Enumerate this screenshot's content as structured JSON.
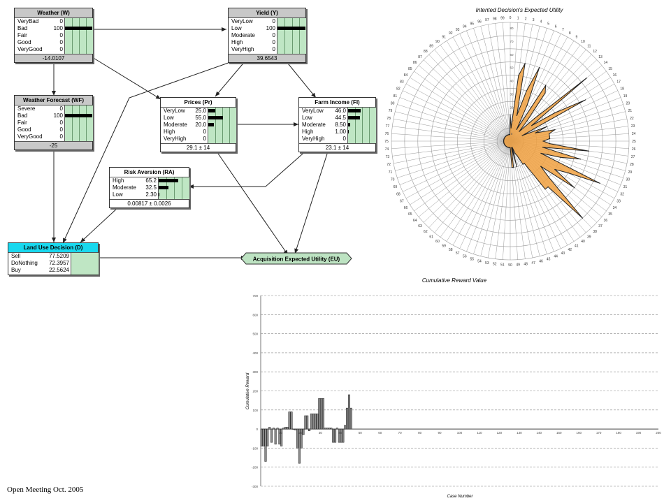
{
  "network": {
    "nodes": {
      "weather": {
        "title": "Weather (W)",
        "states": [
          {
            "label": "VeryBad",
            "value": "0"
          },
          {
            "label": "Bad",
            "value": "100"
          },
          {
            "label": "Fair",
            "value": "0"
          },
          {
            "label": "Good",
            "value": "0"
          },
          {
            "label": "VeryGood",
            "value": "0"
          }
        ],
        "levels": [
          0,
          1,
          0,
          0,
          0
        ],
        "footer": "-14.0107"
      },
      "yield": {
        "title": "Yield (Y)",
        "states": [
          {
            "label": "VeryLow",
            "value": "0"
          },
          {
            "label": "Low",
            "value": "100"
          },
          {
            "label": "Moderate",
            "value": "0"
          },
          {
            "label": "High",
            "value": "0"
          },
          {
            "label": "VeryHigh",
            "value": "0"
          }
        ],
        "levels": [
          0,
          1,
          0,
          0,
          0
        ],
        "footer": "39.6543"
      },
      "forecast": {
        "title": "Weather Forecast (WF)",
        "states": [
          {
            "label": "Severe",
            "value": "0"
          },
          {
            "label": "Bad",
            "value": "100"
          },
          {
            "label": "Fair",
            "value": "0"
          },
          {
            "label": "Good",
            "value": "0"
          },
          {
            "label": "VeryGood",
            "value": "0"
          }
        ],
        "levels": [
          0,
          1,
          0,
          0,
          0
        ],
        "footer": "-25"
      },
      "prices": {
        "title": "Prices (Pr)",
        "states": [
          {
            "label": "VeryLow",
            "value": "25.0"
          },
          {
            "label": "Low",
            "value": "55.0"
          },
          {
            "label": "Moderate",
            "value": "20.0"
          },
          {
            "label": "High",
            "value": "0"
          },
          {
            "label": "VeryHigh",
            "value": "0"
          }
        ],
        "levels": [
          0.25,
          0.55,
          0.2,
          0,
          0
        ],
        "footer": "29.1 ± 14"
      },
      "farm_income": {
        "title": "Farm Income (FI)",
        "states": [
          {
            "label": "VeryLow",
            "value": "46.0"
          },
          {
            "label": "Low",
            "value": "44.5"
          },
          {
            "label": "Moderate",
            "value": "8.50"
          },
          {
            "label": "High",
            "value": "1.00"
          },
          {
            "label": "VeryHigh",
            "value": "0"
          }
        ],
        "levels": [
          0.46,
          0.445,
          0.085,
          0.01,
          0
        ],
        "footer": "23.1 ± 14"
      },
      "risk": {
        "title": "Risk Aversion (RA)",
        "states": [
          {
            "label": "High",
            "value": "65.2"
          },
          {
            "label": "Moderate",
            "value": "32.5"
          },
          {
            "label": "Low",
            "value": "2.30"
          }
        ],
        "levels": [
          0.652,
          0.325,
          0.023
        ],
        "footer": "0.00817 ± 0.0026"
      },
      "decision": {
        "title": "Land Use Decision (D)",
        "states": [
          {
            "label": "Sell",
            "value": "77.5209"
          },
          {
            "label": "DoNothing",
            "value": "72.3957"
          },
          {
            "label": "Buy",
            "value": "22.5624"
          }
        ]
      },
      "utility": {
        "title": "Acquisition Expected Utility (EU)"
      }
    }
  },
  "chart_data": [
    {
      "type": "radar",
      "title": "Intented Decision's Expected Utility",
      "categories": [
        "0",
        "1",
        "2",
        "3",
        "4",
        "5",
        "6",
        "7",
        "8",
        "9",
        "10",
        "11",
        "12",
        "13",
        "14",
        "15",
        "16",
        "17",
        "18",
        "19",
        "20",
        "21",
        "22",
        "23",
        "24",
        "25",
        "26",
        "27",
        "28",
        "29",
        "30",
        "31",
        "32",
        "33",
        "34",
        "35",
        "36",
        "37",
        "38",
        "39",
        "40",
        "41",
        "42",
        "43",
        "44",
        "45",
        "46",
        "47",
        "48",
        "49",
        "50",
        "51",
        "52",
        "53",
        "54",
        "55",
        "56",
        "57",
        "58",
        "59",
        "60",
        "61",
        "62",
        "63",
        "64",
        "65",
        "66",
        "67",
        "68",
        "69",
        "70",
        "71",
        "72",
        "73",
        "74",
        "75",
        "76",
        "77",
        "78",
        "79",
        "80",
        "81",
        "82",
        "83",
        "84",
        "85",
        "86",
        "87",
        "88",
        "89",
        "90",
        "91",
        "92",
        "93",
        "94",
        "95",
        "96",
        "97",
        "98",
        "99"
      ],
      "ring_labels": [
        "80",
        "70",
        "60",
        "50",
        "40",
        "30",
        "20",
        "10",
        "0"
      ],
      "values": [
        20,
        10,
        50,
        60,
        20,
        40,
        60,
        30,
        10,
        50,
        45,
        20,
        10,
        25,
        75,
        20,
        40,
        65,
        10,
        30,
        20,
        35,
        30,
        30,
        30,
        25,
        30,
        60,
        25,
        55,
        40,
        25,
        75,
        50,
        40,
        60,
        30,
        40,
        80,
        45,
        45,
        20,
        20,
        12,
        10,
        5,
        20,
        5,
        20,
        20,
        5,
        5,
        5,
        5,
        5,
        5,
        5,
        5,
        5,
        5,
        5,
        5,
        5,
        5,
        5,
        5,
        5,
        5,
        5,
        5,
        5,
        5,
        5,
        5,
        5,
        5,
        5,
        5,
        5,
        5,
        5,
        5,
        5,
        5,
        5,
        5,
        5,
        5,
        5,
        5,
        5,
        5,
        5,
        5,
        5,
        5,
        5,
        5,
        5,
        5
      ],
      "ylim": [
        0,
        90
      ]
    },
    {
      "type": "bar",
      "title": "Cumulative Reward Value",
      "xlabel": "Case Number",
      "ylabel": "Cumulative Reward",
      "x_ticks": [
        "10",
        "20",
        "30",
        "40",
        "50",
        "60",
        "70",
        "80",
        "90",
        "100",
        "110",
        "120",
        "130",
        "140",
        "150",
        "160",
        "170",
        "180",
        "190",
        "200"
      ],
      "y_ticks": [
        "700",
        "600",
        "500",
        "400",
        "300",
        "200",
        "100",
        "0",
        "-100",
        "-200",
        "-300"
      ],
      "ylim": [
        -300,
        700
      ],
      "xlim": [
        0,
        200
      ],
      "values": [
        -90,
        -90,
        -170,
        -90,
        10,
        -70,
        5,
        -80,
        5,
        -80,
        -90,
        5,
        10,
        10,
        90,
        90,
        0,
        -5,
        -100,
        -180,
        -100,
        -30,
        70,
        70,
        -10,
        80,
        80,
        80,
        80,
        160,
        160,
        160,
        5,
        5,
        5,
        5,
        -70,
        -70,
        5,
        -70,
        -70,
        -70,
        20,
        110,
        180,
        110
      ]
    }
  ],
  "footer": {
    "text": "Open Meeting Oct. 2005"
  },
  "colors": {
    "decision_header": "#19d8ee",
    "bar_area": "#bfe6c4",
    "utility_node": "#bde3c2",
    "radar_fill": "#f0a040",
    "bar_fill": "#8c8c8c"
  }
}
